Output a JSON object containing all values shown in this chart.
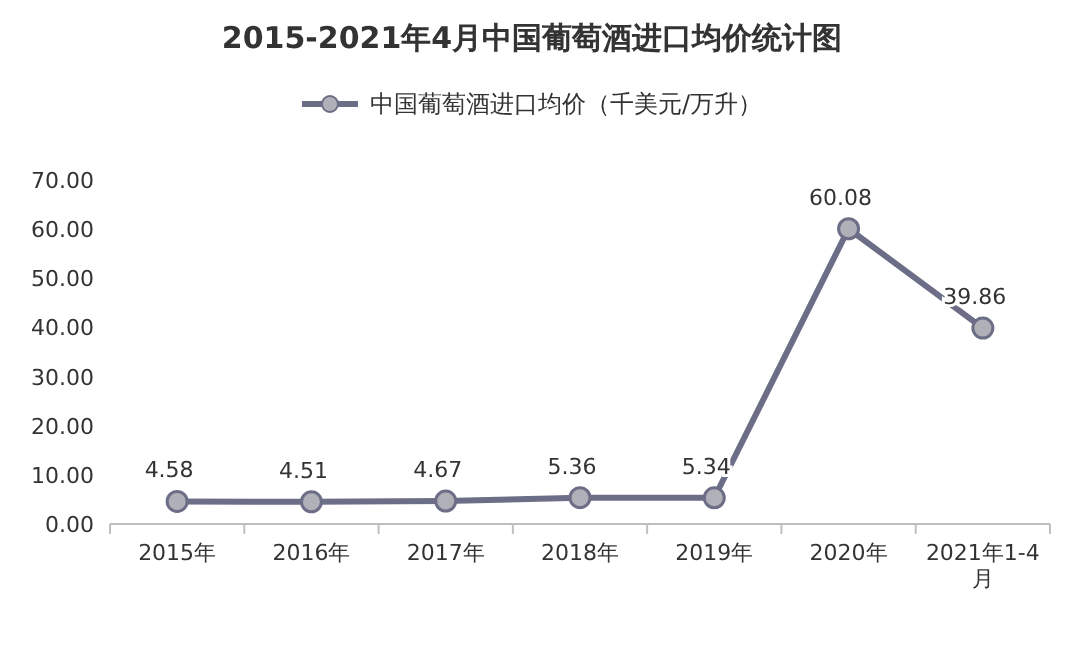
{
  "chart_data": {
    "type": "line",
    "title": "2015-2021年4月中国葡萄酒进口均价统计图",
    "categories": [
      "2015年",
      "2016年",
      "2017年",
      "2018年",
      "2019年",
      "2020年",
      "2021年1-4月"
    ],
    "series": [
      {
        "name": "中国葡萄酒进口均价（千美元/万升）",
        "color": "#6b6e86",
        "values": [
          4.58,
          4.51,
          4.67,
          5.36,
          5.34,
          60.08,
          39.86
        ]
      }
    ],
    "ylim": [
      0,
      70
    ],
    "yticks": [
      {
        "value": 0,
        "label": "0.00"
      },
      {
        "value": 10,
        "label": "10.00"
      },
      {
        "value": 20,
        "label": "20.00"
      },
      {
        "value": 30,
        "label": "30.00"
      },
      {
        "value": 40,
        "label": "40.00"
      },
      {
        "value": 50,
        "label": "50.00"
      },
      {
        "value": 60,
        "label": "60.00"
      },
      {
        "value": 70,
        "label": "70.00"
      }
    ],
    "data_labels": true,
    "legend": "top",
    "marker": "circle",
    "line_style": "solid",
    "grid": false
  }
}
